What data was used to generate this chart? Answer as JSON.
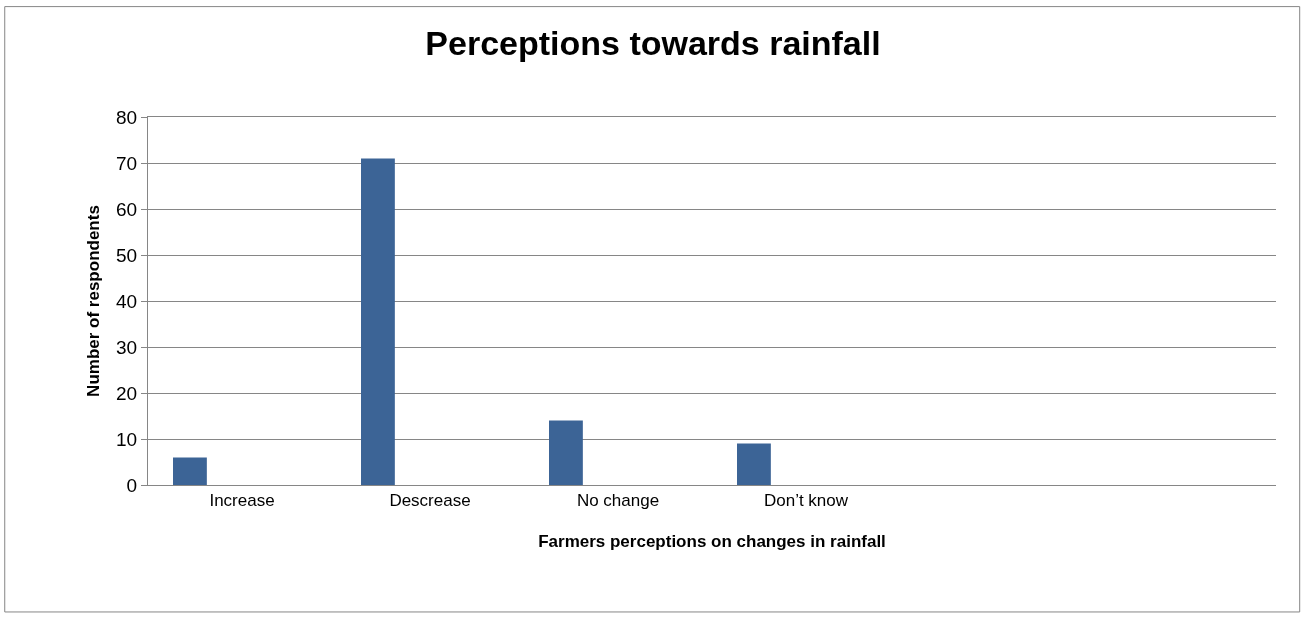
{
  "chart_data": {
    "type": "bar",
    "title": "Perceptions towards rainfall",
    "xlabel": "Farmers perceptions on changes in rainfall",
    "ylabel": "Number of respondents",
    "categories": [
      "Increase",
      "Descrease",
      "No change",
      "Don’t know",
      null,
      null
    ],
    "values": [
      6,
      71,
      14,
      9,
      null,
      null
    ],
    "color": "#3c6496",
    "ylim": [
      0,
      80
    ],
    "yticks": [
      0,
      10,
      20,
      30,
      40,
      50,
      60,
      70,
      80
    ],
    "grid": "y"
  }
}
